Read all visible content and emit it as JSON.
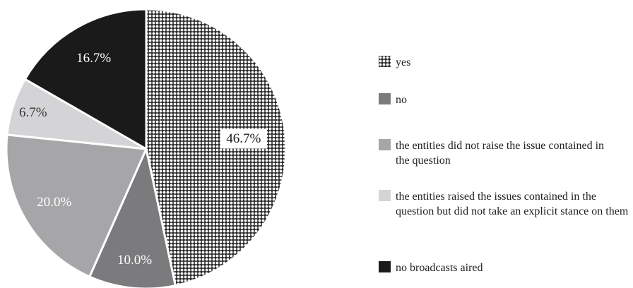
{
  "chart_data": {
    "type": "pie",
    "title": "",
    "slices": [
      {
        "label": "yes",
        "value": 46.7,
        "display": "46.7%",
        "fill": "pattern",
        "color": "#2b2b2b"
      },
      {
        "label": "no",
        "value": 10.0,
        "display": "10.0%",
        "fill": "solid",
        "color": "#7b7b7d"
      },
      {
        "label": "the entities did not raise the issue contained in the question",
        "value": 20.0,
        "display": "20.0%",
        "fill": "solid",
        "color": "#a6a6a8"
      },
      {
        "label": "the entities raised the issues contained in the question but did not take an explicit stance on them",
        "value": 6.7,
        "display": "6.7%",
        "fill": "solid",
        "color": "#d4d4d6"
      },
      {
        "label": "no broadcasts aired",
        "value": 16.7,
        "display": "16.7%",
        "fill": "solid",
        "color": "#1a1a1a"
      }
    ],
    "start_angle": "12 o'clock",
    "direction": "clockwise",
    "legend_position": "right"
  }
}
